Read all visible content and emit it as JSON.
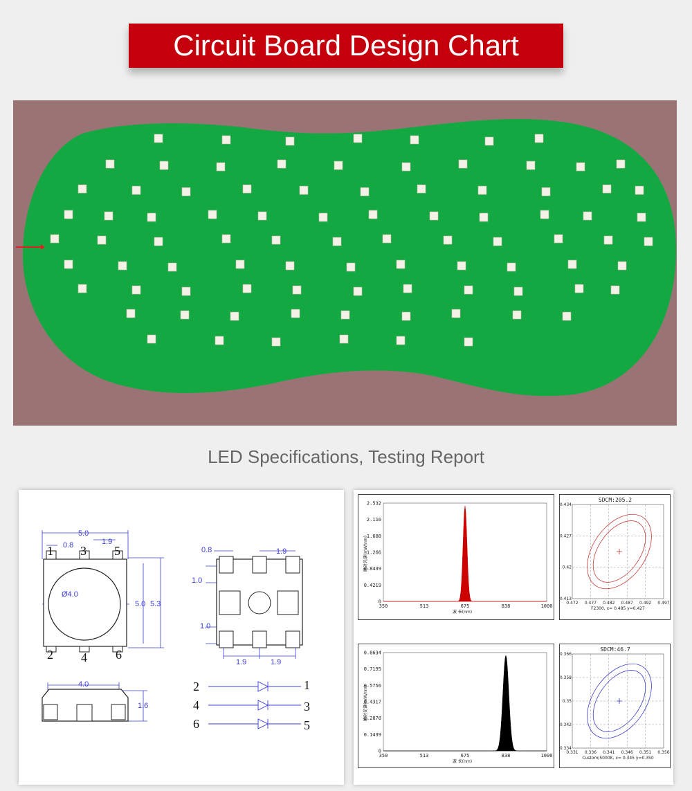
{
  "header": {
    "title": "Circuit Board Design Chart"
  },
  "section": {
    "subtitle": "LED Specifications, Testing Report"
  },
  "colors": {
    "banner": "#c4000c",
    "pcb": "#14a842",
    "pcb_bg": "#9a7474",
    "dim": "#3b3bd4",
    "red_peak": "#cc0000",
    "ir_peak": "#000000"
  },
  "drawing": {
    "top_width": "5.0",
    "pin_pitch_top": "0.8",
    "pin_gap_top": "1.9",
    "lens_dia": "Ø4.0",
    "height_inner": "5.0",
    "height_outer": "5.3",
    "pins_top": [
      "1",
      "3",
      "5"
    ],
    "pins_bottom": [
      "2",
      "4",
      "6"
    ],
    "side_width": "4.0",
    "side_height": "1.6",
    "foot_pad_w": "0.8",
    "foot_gap": "1.9",
    "foot_pad_h_top": "1.0",
    "foot_pad_h_bot": "1.0",
    "foot_gap_bot_1": "1.9",
    "foot_gap_bot_2": "1.9",
    "circuit": [
      {
        "a": "2",
        "k": "1"
      },
      {
        "a": "4",
        "k": "3"
      },
      {
        "a": "6",
        "k": "5"
      }
    ]
  },
  "spectra": [
    {
      "yticks": [
        "2.532",
        "2.110",
        "1.688",
        "1.266",
        "0.8439",
        "0.4219",
        "0"
      ],
      "xticks": [
        "350",
        "513",
        "675",
        "838",
        "1000"
      ],
      "ylabel": "绝对光谱(mW/nm)",
      "xlabel": "波 长(nm)"
    },
    {
      "yticks": [
        "0.8634",
        "0.7195",
        "0.5756",
        "0.4317",
        "0.2878",
        "0.1439",
        "0"
      ],
      "xticks": [
        "350",
        "513",
        "675",
        "838",
        "1000"
      ],
      "ylabel": "绝对光谱(mW/nm)",
      "xlabel": "波 长(nm)"
    }
  ],
  "chroma": [
    {
      "title": "SDCM:205.2",
      "yticks": [
        "0.434",
        "0.427",
        "0.42",
        "0.413"
      ],
      "xticks": [
        "0.472",
        "0.477",
        "0.482",
        "0.487",
        "0.492",
        "0.497"
      ],
      "footer": "F2300, x= 0.485 y=0.427"
    },
    {
      "title": "SDCM:46.7",
      "yticks": [
        "0.366",
        "0.358",
        "0.35",
        "0.342",
        "0.334"
      ],
      "xticks": [
        "0.331",
        "0.336",
        "0.341",
        "0.346",
        "0.351",
        "0.356"
      ],
      "footer": "Custom/5000K, x= 0.345 y=0.350"
    }
  ]
}
